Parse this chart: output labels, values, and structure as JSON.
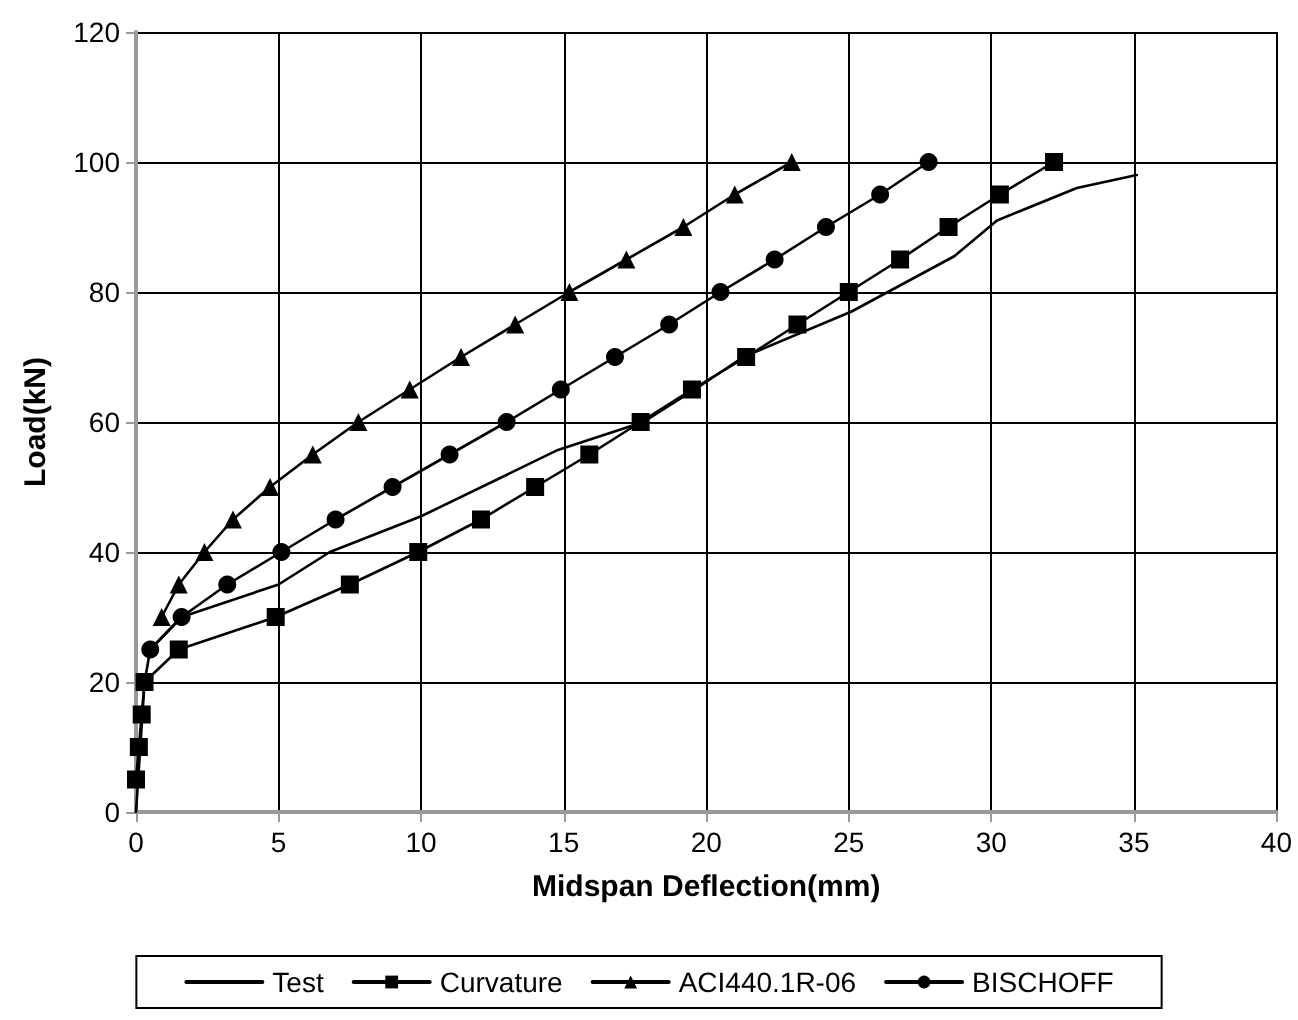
{
  "chart_data": {
    "type": "line",
    "xlabel": "Midspan Deflection(mm)",
    "ylabel": "Load(kN)",
    "xlim": [
      0,
      40
    ],
    "xticks": [
      0,
      5,
      10,
      15,
      20,
      25,
      30,
      35,
      40
    ],
    "ylim": [
      0,
      120
    ],
    "yticks": [
      0,
      20,
      40,
      60,
      80,
      100,
      120
    ],
    "grid": true,
    "legend": "bottom",
    "series": [
      {
        "name": "Test",
        "color": "#000000",
        "marker": "none",
        "x": [
          0,
          0.3,
          0.5,
          1.6,
          5,
          6.8,
          10,
          14.8,
          17.8,
          19.6,
          21.3,
          25.1,
          28.7,
          30.2,
          33,
          35.1
        ],
        "values": [
          0,
          20,
          25,
          30,
          35,
          40,
          45.5,
          55.7,
          60,
          65,
          70,
          77,
          85.5,
          91,
          96,
          98
        ]
      },
      {
        "name": "Curvature",
        "color": "#000000",
        "marker": "square",
        "x": [
          0,
          0.1,
          0.2,
          0.3,
          1.5,
          4.9,
          7.5,
          9.9,
          12.1,
          14,
          15.9,
          17.7,
          19.5,
          21.4,
          23.2,
          25,
          26.8,
          28.5,
          30.3,
          32.2
        ],
        "values": [
          5,
          10,
          15,
          20,
          25,
          30,
          35,
          40,
          45,
          50,
          55,
          60,
          65,
          70,
          75,
          80,
          85,
          90,
          95,
          100
        ]
      },
      {
        "name": "ACI440.1R-06",
        "color": "#000000",
        "marker": "triangle",
        "x": [
          0.9,
          1.5,
          2.4,
          3.4,
          4.7,
          6.2,
          7.8,
          9.6,
          11.4,
          13.3,
          15.2,
          17.2,
          19.2,
          21,
          23
        ],
        "values": [
          30,
          35,
          40,
          45,
          50,
          55,
          60,
          65,
          70,
          75,
          80,
          85,
          90,
          95,
          100
        ]
      },
      {
        "name": "BISCHOFF",
        "color": "#000000",
        "marker": "circle",
        "x": [
          0.5,
          1.6,
          3.2,
          5.1,
          7,
          9,
          11,
          13,
          14.9,
          16.8,
          18.7,
          20.5,
          22.4,
          24.2,
          26.1,
          27.8
        ],
        "values": [
          25,
          30,
          35,
          40,
          45,
          50,
          55,
          60,
          65,
          70,
          75,
          80,
          85,
          90,
          95,
          100
        ]
      }
    ]
  }
}
